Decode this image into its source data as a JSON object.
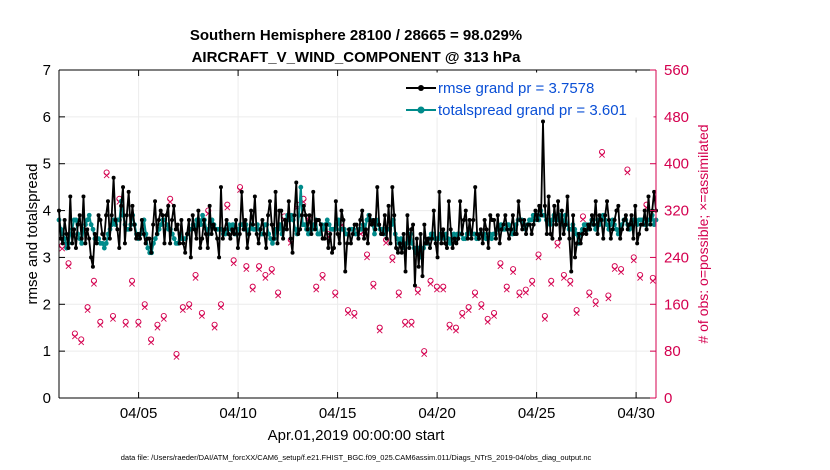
{
  "chart_data": {
    "type": "line",
    "title_line1": "Southern Hemisphere 28100 / 28665 = 98.029%",
    "title_line2": "AIRCRAFT_V_WIND_COMPONENT @ 313 hPa",
    "xlabel": "Apr.01,2019 00:00:00 start",
    "ylabel": "rmse and totalspread",
    "y2label": "# of obs: o=possible; ×=assimilated",
    "footer": "data file: /Users/raeder/DAI/ATM_forcXX/CAM6_setup/f.e21.FHIST_BGC.f09_025.CAM6assim.011/Diags_NTrS_2019-04/obs_diag_output.nc",
    "xlim": [
      1.0,
      31.0
    ],
    "ylim": [
      0,
      7
    ],
    "y2lim": [
      0,
      560
    ],
    "x_ticks": [
      5,
      10,
      15,
      20,
      25,
      30
    ],
    "x_tick_labels": [
      "04/05",
      "04/10",
      "04/15",
      "04/20",
      "04/25",
      "04/30"
    ],
    "y_ticks": [
      0,
      1,
      2,
      3,
      4,
      5,
      6,
      7
    ],
    "y_tick_labels": [
      "0",
      "1",
      "2",
      "3",
      "4",
      "5",
      "6",
      "7"
    ],
    "y2_ticks": [
      0,
      80,
      160,
      240,
      320,
      400,
      480,
      560
    ],
    "y2_tick_labels": [
      "0",
      "80",
      "160",
      "240",
      "320",
      "400",
      "480",
      "560"
    ],
    "grid": true,
    "legend_location": "top-right",
    "colors": {
      "rmse": "#000000",
      "spread": "#008b8b",
      "obs": "#d4004f",
      "legend_text": "#0a4fd6",
      "grid": "#ececec"
    },
    "series": [
      {
        "name": "rmse grand pr = 3.7578",
        "axis": "left",
        "values": [
          4.0,
          3.4,
          3.3,
          3.8,
          3.5,
          3.2,
          4.3,
          3.3,
          3.6,
          3.2,
          3.7,
          3.9,
          3.4,
          4.3,
          3.3,
          3.6,
          3.4,
          3.0,
          2.8,
          3.5,
          3.3,
          3.9,
          3.8,
          3.5,
          3.4,
          3.9,
          4.2,
          3.4,
          3.9,
          4.7,
          3.8,
          3.6,
          3.2,
          4.1,
          4.5,
          3.3,
          3.9,
          4.4,
          3.6,
          4.1,
          3.7,
          3.4,
          3.5,
          3.4,
          3.8,
          3.5,
          3.3,
          3.4,
          3.4,
          3.1,
          3.7,
          4.2,
          3.5,
          3.8,
          4.0,
          3.9,
          3.3,
          3.9,
          4.1,
          3.3,
          3.8,
          4.1,
          3.6,
          3.7,
          3.3,
          3.8,
          3.3,
          3.1,
          3.5,
          3.8,
          3.0,
          3.9,
          3.6,
          3.4,
          4.0,
          3.2,
          3.4,
          3.8,
          3.5,
          3.2,
          4.1,
          3.5,
          3.7,
          3.6,
          3.4,
          3.0,
          4.5,
          3.4,
          3.6,
          3.8,
          3.5,
          3.4,
          3.6,
          3.5,
          3.8,
          3.2,
          3.5,
          4.4,
          3.6,
          3.8,
          3.2,
          3.5,
          4.0,
          3.7,
          4.3,
          3.5,
          3.3,
          3.6,
          3.8,
          3.5,
          3.2,
          3.9,
          4.2,
          3.7,
          3.4,
          4.4,
          3.3,
          4.0,
          4.0,
          3.4,
          3.8,
          3.6,
          4.2,
          3.4,
          3.1,
          3.9,
          4.6,
          3.5,
          3.6,
          3.9,
          4.1,
          3.9,
          3.6,
          3.9,
          3.5,
          4.4,
          3.6,
          3.8,
          3.8,
          3.7,
          3.4,
          3.4,
          3.7,
          3.2,
          3.5,
          3.1,
          3.2,
          4.2,
          3.5,
          3.3,
          4.0,
          3.8,
          2.7,
          3.3,
          3.6,
          3.3,
          3.5,
          3.7,
          3.7,
          3.4,
          3.8,
          4.0,
          3.4,
          3.6,
          3.3,
          3.9,
          3.7,
          3.8,
          3.6,
          4.5,
          3.7,
          3.5,
          3.5,
          3.9,
          3.4,
          4.1,
          3.3,
          4.5,
          3.9,
          3.2,
          3.1,
          3.3,
          3.1,
          3.5,
          2.7,
          3.9,
          3.2,
          3.6,
          3.7,
          2.4,
          3.4,
          2.8,
          3.5,
          2.6,
          3.7,
          3.3,
          3.4,
          3.2,
          3.4,
          4.0,
          3.3,
          3.0,
          4.4,
          3.3,
          3.6,
          3.3,
          3.2,
          4.2,
          3.6,
          3.2,
          3.4,
          3.3,
          3.4,
          4.2,
          3.5,
          3.8,
          4.0,
          3.4,
          3.8,
          3.4,
          3.8,
          4.5,
          3.5,
          3.4,
          3.6,
          3.3,
          3.8,
          3.6,
          3.2,
          3.9,
          3.8,
          3.8,
          3.4,
          3.9,
          3.3,
          3.6,
          3.7,
          3.9,
          3.6,
          3.4,
          3.6,
          3.9,
          3.5,
          3.5,
          4.2,
          3.8,
          3.6,
          3.8,
          3.5,
          3.7,
          3.7,
          3.5,
          3.7,
          4.0,
          3.8,
          4.1,
          3.9,
          5.9,
          4.1,
          3.5,
          4.3,
          3.5,
          3.4,
          4.1,
          3.7,
          4.2,
          3.4,
          4.0,
          3.5,
          3.7,
          4.3,
          3.4,
          2.7,
          3.9,
          3.0,
          3.3,
          3.5,
          3.3,
          3.5,
          3.6,
          3.5,
          3.7,
          3.6,
          3.9,
          3.7,
          4.2,
          3.5,
          3.9,
          3.8,
          3.4,
          3.9,
          4.2,
          3.8,
          3.4,
          3.6,
          3.8,
          4.0,
          4.1,
          3.4,
          3.6,
          3.8,
          3.9,
          3.6,
          3.7,
          3.9,
          3.4,
          4.1,
          3.3,
          3.5,
          3.7,
          3.7,
          4.0,
          3.6,
          4.3,
          3.7,
          4.0,
          4.4,
          4.0
        ]
      },
      {
        "name": "totalspread grand pr = 3.601",
        "axis": "left",
        "values": [
          3.8,
          3.6,
          3.5,
          3.4,
          3.2,
          3.3,
          3.5,
          3.6,
          3.8,
          3.8,
          3.5,
          3.4,
          3.3,
          3.6,
          3.7,
          3.8,
          3.9,
          3.7,
          3.6,
          3.4,
          3.4,
          3.4,
          3.3,
          3.3,
          3.2,
          3.3,
          3.5,
          3.6,
          3.7,
          3.8,
          3.7,
          3.8,
          3.8,
          4.2,
          3.9,
          3.7,
          3.6,
          3.6,
          3.7,
          3.9,
          3.7,
          3.5,
          3.4,
          3.5,
          3.6,
          3.8,
          3.5,
          3.2,
          3.1,
          3.1,
          3.3,
          3.4,
          3.5,
          3.6,
          3.7,
          3.8,
          3.8,
          3.7,
          3.6,
          3.6,
          3.5,
          3.4,
          3.3,
          3.3,
          3.5,
          3.4,
          3.4,
          3.4,
          3.5,
          3.6,
          3.6,
          3.7,
          3.6,
          3.8,
          3.8,
          3.7,
          3.9,
          3.8,
          3.6,
          3.5,
          3.7,
          3.8,
          3.7,
          3.6,
          3.6,
          3.6,
          3.6,
          3.5,
          3.5,
          3.6,
          3.7,
          3.6,
          3.7,
          3.5,
          3.5,
          3.6,
          3.7,
          3.7,
          3.6,
          3.7,
          3.5,
          3.6,
          3.7,
          3.6,
          3.6,
          3.7,
          3.6,
          3.5,
          3.5,
          3.7,
          3.7,
          3.5,
          3.4,
          3.3,
          3.4,
          3.6,
          3.6,
          3.7,
          3.5,
          3.6,
          3.8,
          3.9,
          3.8,
          3.9,
          3.8,
          3.6,
          3.5,
          3.9,
          4.5,
          3.7,
          3.7,
          3.6,
          3.5,
          3.6,
          3.6,
          3.7,
          3.8,
          3.5,
          3.5,
          3.7,
          3.6,
          3.7,
          3.8,
          3.7,
          3.6,
          3.6,
          3.6,
          3.7,
          3.8,
          3.6,
          3.6,
          3.6,
          3.5,
          3.5,
          3.6,
          3.6,
          3.6,
          3.5,
          3.5,
          3.6,
          3.6,
          3.7,
          3.6,
          3.8,
          3.9,
          3.8,
          3.7,
          3.5,
          3.8,
          3.7,
          3.6,
          3.6,
          3.5,
          3.6,
          3.6,
          3.6,
          3.7,
          3.8,
          3.5,
          3.4,
          3.3,
          3.4,
          3.3,
          3.2,
          3.3,
          3.4,
          3.5,
          3.3,
          3.2,
          3.1,
          3.2,
          3.1,
          3.0,
          3.2,
          3.3,
          3.3,
          3.4,
          3.5,
          3.5,
          3.4,
          3.4,
          3.4,
          3.5,
          3.5,
          3.4,
          3.5,
          3.4,
          3.3,
          3.4,
          3.5,
          3.4,
          3.5,
          3.5,
          3.5,
          3.4,
          3.4,
          3.5,
          3.6,
          3.5,
          3.5,
          3.5,
          3.4,
          3.4,
          3.5,
          3.5,
          3.5,
          3.4,
          3.4,
          3.5,
          3.4,
          3.5,
          3.5,
          3.6,
          3.6,
          3.7,
          3.6,
          3.6,
          3.7,
          3.7,
          3.6,
          3.5,
          3.6,
          3.7,
          3.8,
          3.8,
          3.8,
          3.7,
          3.6,
          3.7,
          3.8,
          3.8,
          3.9,
          3.8,
          3.9,
          3.8,
          4.0,
          3.9,
          3.9,
          3.8,
          3.8,
          3.7,
          3.8,
          3.9,
          3.8,
          3.8,
          3.9,
          3.8,
          3.7,
          3.9,
          3.7,
          3.6,
          3.6,
          3.7,
          3.6,
          3.5,
          3.3,
          3.5,
          3.6,
          3.7,
          3.7,
          3.6,
          3.7,
          3.8,
          3.7,
          3.6,
          3.8,
          3.7,
          3.8,
          3.9,
          3.8,
          3.7,
          3.6,
          3.7,
          3.8,
          3.7,
          3.6,
          3.5,
          3.6,
          3.7,
          3.8,
          3.8,
          3.7,
          3.6,
          3.7,
          3.8,
          3.8,
          3.7,
          3.8,
          3.8,
          3.8,
          3.7,
          3.7,
          3.8,
          3.8,
          3.9,
          3.7,
          3.8
        ]
      },
      {
        "name": "obs_possible",
        "axis": "right",
        "marker": "circle",
        "values": [
          260,
          230,
          110,
          100,
          155,
          200,
          130,
          385,
          140,
          340,
          130,
          200,
          130,
          160,
          100,
          125,
          140,
          340,
          75,
          155,
          160,
          210,
          145,
          320,
          125,
          160,
          330,
          235,
          360,
          225,
          190,
          225,
          210,
          220,
          180,
          310,
          270,
          330,
          340,
          305,
          190,
          210,
          280,
          180,
          300,
          150,
          145,
          285,
          245,
          195,
          120,
          270,
          240,
          180,
          130,
          130,
          185,
          80,
          200,
          190,
          190,
          125,
          120,
          145,
          155,
          180,
          160,
          135,
          145,
          230,
          190,
          220,
          180,
          185,
          200,
          245,
          140,
          200,
          265,
          210,
          200,
          150,
          310,
          180,
          165,
          420,
          175,
          225,
          220,
          390,
          240,
          210,
          330,
          205
        ]
      },
      {
        "name": "obs_assimilated",
        "axis": "right",
        "marker": "cross",
        "values": [
          255,
          225,
          105,
          95,
          150,
          195,
          125,
          380,
          135,
          335,
          125,
          195,
          125,
          155,
          95,
          120,
          135,
          335,
          70,
          150,
          155,
          205,
          140,
          315,
          120,
          155,
          325,
          230,
          355,
          220,
          185,
          220,
          205,
          215,
          175,
          305,
          265,
          325,
          335,
          300,
          185,
          205,
          275,
          175,
          295,
          145,
          140,
          280,
          240,
          190,
          115,
          265,
          235,
          175,
          125,
          125,
          180,
          75,
          195,
          185,
          185,
          120,
          115,
          140,
          150,
          175,
          155,
          130,
          140,
          225,
          185,
          215,
          175,
          180,
          195,
          240,
          135,
          195,
          260,
          205,
          195,
          145,
          305,
          175,
          160,
          415,
          170,
          220,
          215,
          385,
          235,
          205,
          325,
          200
        ]
      }
    ]
  }
}
